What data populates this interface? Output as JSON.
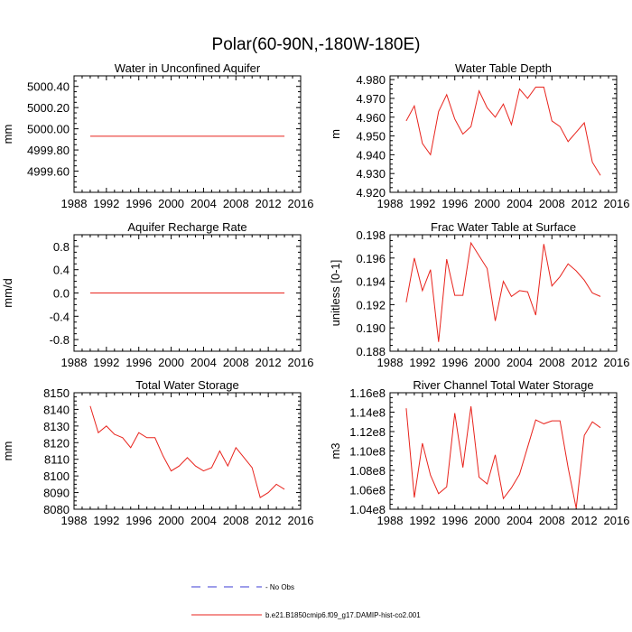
{
  "title": "Polar(60-90N,-180W-180E)",
  "legend": {
    "items": [
      {
        "label": "- No Obs",
        "color": "#3b3bd4",
        "style": "dashed"
      },
      {
        "label": "b.e21.B1850cmip6.f09_g17.DAMIP-hist-co2.001",
        "color": "#e8231c",
        "style": "solid"
      }
    ]
  },
  "chart_data": [
    {
      "type": "line",
      "title": "Water in Unconfined Aquifer",
      "ylabel": "mm",
      "xlim": [
        1988,
        2016
      ],
      "ylim": [
        4999.4,
        5000.5
      ],
      "xticks": [
        1988,
        1992,
        1996,
        2000,
        2004,
        2008,
        2012,
        2016
      ],
      "yticks": [
        4999.6,
        4999.8,
        5000.0,
        5000.2,
        5000.4
      ],
      "ytick_labels": [
        "4999.60",
        "4999.80",
        "5000.00",
        "5000.20",
        "5000.40"
      ],
      "series": [
        {
          "color": "#e8231c",
          "x": [
            1990,
            1991,
            1992,
            1993,
            1994,
            1995,
            1996,
            1997,
            1998,
            1999,
            2000,
            2001,
            2002,
            2003,
            2004,
            2005,
            2006,
            2007,
            2008,
            2009,
            2010,
            2011,
            2012,
            2013,
            2014
          ],
          "values": [
            4999.93,
            4999.93,
            4999.93,
            4999.93,
            4999.93,
            4999.93,
            4999.93,
            4999.93,
            4999.93,
            4999.93,
            4999.93,
            4999.93,
            4999.93,
            4999.93,
            4999.93,
            4999.93,
            4999.93,
            4999.93,
            4999.93,
            4999.93,
            4999.93,
            4999.93,
            4999.93,
            4999.93,
            4999.93
          ]
        }
      ]
    },
    {
      "type": "line",
      "title": "Water Table Depth",
      "ylabel": "m",
      "xlim": [
        1988,
        2016
      ],
      "ylim": [
        4.92,
        4.982
      ],
      "xticks": [
        1988,
        1992,
        1996,
        2000,
        2004,
        2008,
        2012,
        2016
      ],
      "yticks": [
        4.92,
        4.93,
        4.94,
        4.95,
        4.96,
        4.97,
        4.98
      ],
      "ytick_labels": [
        "4.920",
        "4.930",
        "4.940",
        "4.950",
        "4.960",
        "4.970",
        "4.980"
      ],
      "series": [
        {
          "color": "#e8231c",
          "x": [
            1990,
            1991,
            1992,
            1993,
            1994,
            1995,
            1996,
            1997,
            1998,
            1999,
            2000,
            2001,
            2002,
            2003,
            2004,
            2005,
            2006,
            2007,
            2008,
            2009,
            2010,
            2011,
            2012,
            2013,
            2014
          ],
          "values": [
            4.958,
            4.966,
            4.946,
            4.94,
            4.963,
            4.972,
            4.959,
            4.951,
            4.955,
            4.974,
            4.965,
            4.96,
            4.967,
            4.956,
            4.975,
            4.97,
            4.976,
            4.976,
            4.958,
            4.955,
            4.947,
            4.952,
            4.957,
            4.936,
            4.929
          ]
        }
      ]
    },
    {
      "type": "line",
      "title": "Aquifer Recharge Rate",
      "ylabel": "mm/d",
      "xlim": [
        1988,
        2016
      ],
      "ylim": [
        -1.0,
        1.0
      ],
      "xticks": [
        1988,
        1992,
        1996,
        2000,
        2004,
        2008,
        2012,
        2016
      ],
      "yticks": [
        -0.8,
        -0.4,
        0.0,
        0.4,
        0.8
      ],
      "ytick_labels": [
        "-0.8",
        "-0.4",
        "0.0",
        "0.4",
        "0.8"
      ],
      "series": [
        {
          "color": "#e8231c",
          "x": [
            1990,
            1991,
            1992,
            1993,
            1994,
            1995,
            1996,
            1997,
            1998,
            1999,
            2000,
            2001,
            2002,
            2003,
            2004,
            2005,
            2006,
            2007,
            2008,
            2009,
            2010,
            2011,
            2012,
            2013,
            2014
          ],
          "values": [
            0,
            0,
            0,
            0,
            0,
            0,
            0,
            0,
            0,
            0,
            0,
            0,
            0,
            0,
            0,
            0,
            0,
            0,
            0,
            0,
            0,
            0,
            0,
            0,
            0
          ]
        }
      ]
    },
    {
      "type": "line",
      "title": "Frac Water Table at Surface",
      "ylabel": "unitless [0-1]",
      "xlim": [
        1988,
        2016
      ],
      "ylim": [
        0.188,
        0.198
      ],
      "xticks": [
        1988,
        1992,
        1996,
        2000,
        2004,
        2008,
        2012,
        2016
      ],
      "yticks": [
        0.188,
        0.19,
        0.192,
        0.194,
        0.196,
        0.198
      ],
      "ytick_labels": [
        "0.188",
        "0.190",
        "0.192",
        "0.194",
        "0.196",
        "0.198"
      ],
      "series": [
        {
          "color": "#e8231c",
          "x": [
            1990,
            1991,
            1992,
            1993,
            1994,
            1995,
            1996,
            1997,
            1998,
            1999,
            2000,
            2001,
            2002,
            2003,
            2004,
            2005,
            2006,
            2007,
            2008,
            2009,
            2010,
            2011,
            2012,
            2013,
            2014
          ],
          "values": [
            0.1922,
            0.196,
            0.1932,
            0.195,
            0.1888,
            0.1959,
            0.1928,
            0.1928,
            0.1973,
            0.1962,
            0.1951,
            0.1906,
            0.194,
            0.1927,
            0.1932,
            0.1931,
            0.1911,
            0.1972,
            0.1936,
            0.1944,
            0.1955,
            0.1949,
            0.1941,
            0.193,
            0.1927
          ]
        }
      ]
    },
    {
      "type": "line",
      "title": "Total Water Storage",
      "ylabel": "mm",
      "xlim": [
        1988,
        2016
      ],
      "ylim": [
        8080,
        8150
      ],
      "xticks": [
        1988,
        1992,
        1996,
        2000,
        2004,
        2008,
        2012,
        2016
      ],
      "yticks": [
        8080,
        8090,
        8100,
        8110,
        8120,
        8130,
        8140,
        8150
      ],
      "ytick_labels": [
        "8080",
        "8090",
        "8100",
        "8110",
        "8120",
        "8130",
        "8140",
        "8150"
      ],
      "series": [
        {
          "color": "#e8231c",
          "x": [
            1990,
            1991,
            1992,
            1993,
            1994,
            1995,
            1996,
            1997,
            1998,
            1999,
            2000,
            2001,
            2002,
            2003,
            2004,
            2005,
            2006,
            2007,
            2008,
            2009,
            2010,
            2011,
            2012,
            2013,
            2014
          ],
          "values": [
            8142,
            8126,
            8130,
            8125,
            8123,
            8117,
            8126,
            8123,
            8123,
            8112,
            8103,
            8106,
            8111,
            8106,
            8103,
            8105,
            8115,
            8106,
            8117,
            8111,
            8105,
            8087,
            8090,
            8095,
            8092
          ]
        }
      ]
    },
    {
      "type": "line",
      "title": "River Channel Total Water Storage",
      "ylabel": "m3",
      "xlim": [
        1988,
        2016
      ],
      "ylim": [
        104000000.0,
        116000000.0
      ],
      "xticks": [
        1988,
        1992,
        1996,
        2000,
        2004,
        2008,
        2012,
        2016
      ],
      "yticks": [
        104000000.0,
        106000000.0,
        108000000.0,
        110000000.0,
        112000000.0,
        114000000.0,
        116000000.0
      ],
      "ytick_labels": [
        "1.04e8",
        "1.06e8",
        "1.08e8",
        "1.10e8",
        "1.12e8",
        "1.14e8",
        "1.16e8"
      ],
      "series": [
        {
          "color": "#e8231c",
          "x": [
            1990,
            1991,
            1992,
            1993,
            1994,
            1995,
            1996,
            1997,
            1998,
            1999,
            2000,
            2001,
            2002,
            2003,
            2004,
            2005,
            2006,
            2007,
            2008,
            2009,
            2010,
            2011,
            2012,
            2013,
            2014
          ],
          "values": [
            114400000.0,
            105200000.0,
            110800000.0,
            107500000.0,
            105600000.0,
            106300000.0,
            113900000.0,
            108300000.0,
            114600000.0,
            107300000.0,
            106600000.0,
            109600000.0,
            105100000.0,
            106200000.0,
            107600000.0,
            110400000.0,
            113200000.0,
            112800000.0,
            113100000.0,
            113100000.0,
            108300000.0,
            104100000.0,
            111600000.0,
            113000000.0,
            112400000.0
          ]
        }
      ]
    }
  ]
}
